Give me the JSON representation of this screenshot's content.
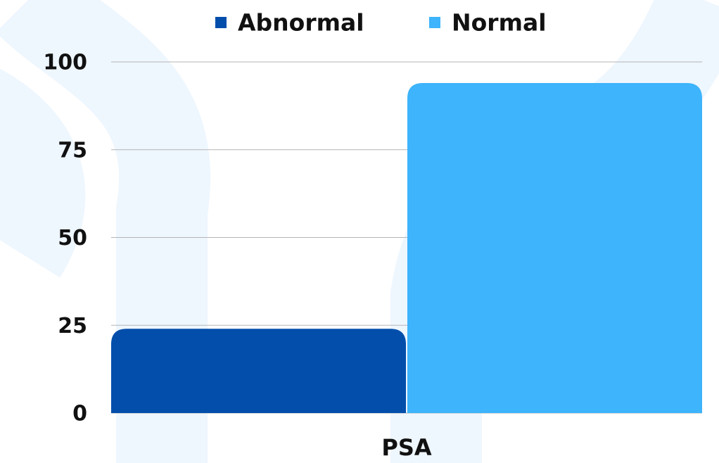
{
  "chart_data": {
    "type": "bar",
    "categories": [
      "PSA"
    ],
    "series": [
      {
        "name": "Abnormal",
        "color": "#034eab",
        "values": [
          24
        ]
      },
      {
        "name": "Normal",
        "color": "#3db4fb",
        "values": [
          94
        ]
      }
    ],
    "ylim": [
      0,
      100
    ],
    "yticks": [
      0,
      25,
      50,
      75,
      100
    ],
    "grid": true,
    "legend": "top"
  }
}
